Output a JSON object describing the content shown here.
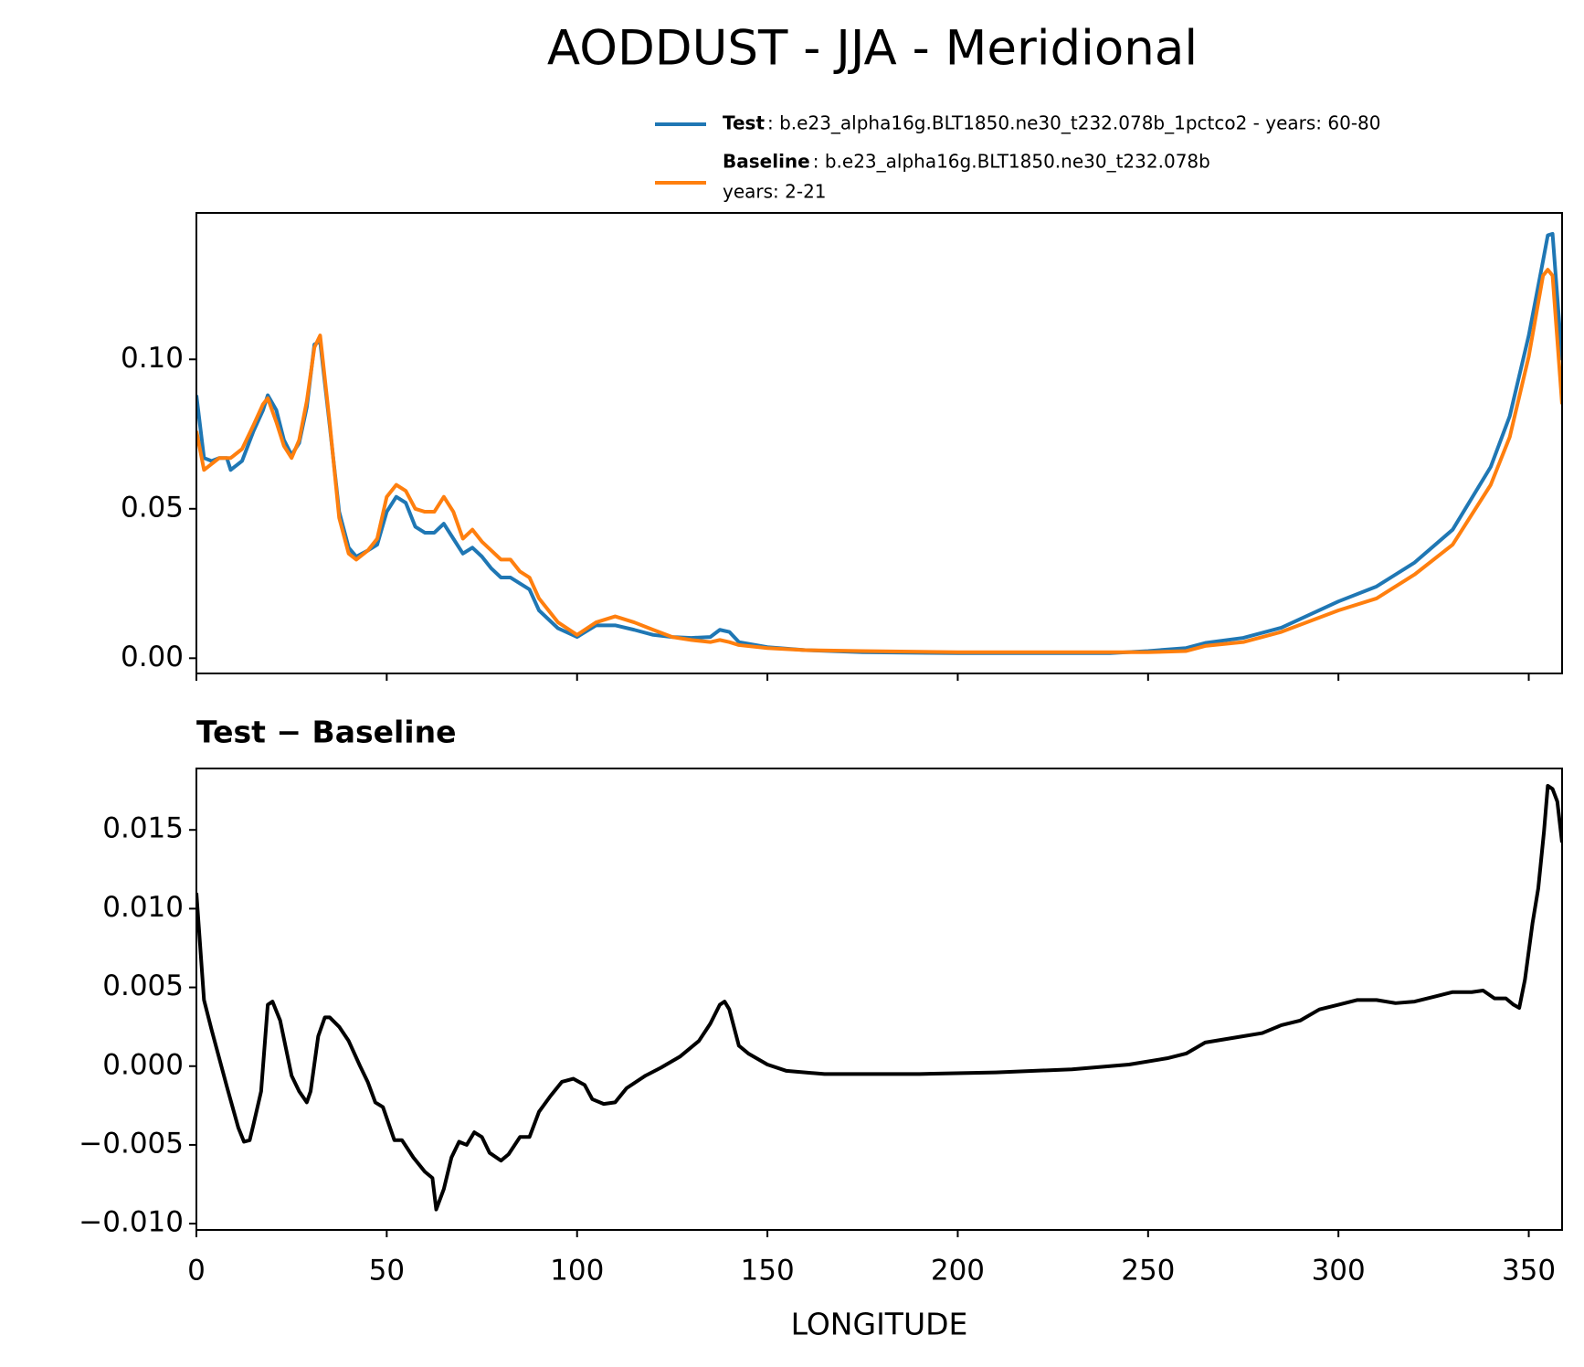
{
  "chart_data": [
    {
      "type": "line",
      "title": "AODDUST - JJA - Meridional",
      "x": [
        0,
        2,
        4,
        6,
        8,
        9,
        12,
        15,
        17.5,
        18.75,
        21,
        23,
        25,
        27,
        29,
        31,
        32.5,
        35,
        37.5,
        40,
        42,
        45,
        47.5,
        50,
        52.5,
        55,
        57.5,
        60,
        62.5,
        65,
        67.5,
        70,
        72.5,
        75,
        77.5,
        80,
        82.5,
        85,
        87.5,
        90,
        95,
        100,
        105,
        110,
        115,
        120,
        125,
        130,
        135,
        137.5,
        140,
        142.5,
        150,
        160,
        175,
        200,
        240,
        250,
        260,
        265,
        275,
        285,
        300,
        310,
        320,
        330,
        340,
        345,
        350,
        353.75,
        355,
        356.25,
        358.75
      ],
      "series": [
        {
          "name": "Test",
          "label_lines": [
            ": b.e23_alpha16g.BLT1850.ne30_t232.078b_1pctco2 - years: 60-80"
          ],
          "color": "#1f77b4",
          "values": [
            0.088,
            0.067,
            0.066,
            0.067,
            0.067,
            0.063,
            0.066,
            0.076,
            0.083,
            0.088,
            0.083,
            0.073,
            0.068,
            0.072,
            0.084,
            0.105,
            0.106,
            0.078,
            0.049,
            0.037,
            0.034,
            0.036,
            0.038,
            0.049,
            0.054,
            0.052,
            0.044,
            0.042,
            0.042,
            0.045,
            0.04,
            0.035,
            0.037,
            0.034,
            0.03,
            0.027,
            0.027,
            0.025,
            0.023,
            0.016,
            0.01,
            0.0071,
            0.011,
            0.011,
            0.0095,
            0.0078,
            0.0071,
            0.0068,
            0.0071,
            0.0095,
            0.0088,
            0.0054,
            0.0037,
            0.0027,
            0.002,
            0.0017,
            0.0017,
            0.0024,
            0.0034,
            0.0051,
            0.0068,
            0.0102,
            0.019,
            0.024,
            0.032,
            0.043,
            0.064,
            0.081,
            0.108,
            0.133,
            0.1415,
            0.142,
            0.0997
          ]
        },
        {
          "name": "Baseline",
          "label_lines": [
            ": b.e23_alpha16g.BLT1850.ne30_t232.078b",
            "years: 2-21"
          ],
          "color": "#ff7f0e",
          "values": [
            0.076,
            0.063,
            0.065,
            0.067,
            0.067,
            0.067,
            0.07,
            0.078,
            0.085,
            0.087,
            0.079,
            0.071,
            0.067,
            0.073,
            0.086,
            0.104,
            0.108,
            0.079,
            0.047,
            0.035,
            0.033,
            0.036,
            0.04,
            0.054,
            0.058,
            0.056,
            0.05,
            0.049,
            0.049,
            0.054,
            0.049,
            0.04,
            0.043,
            0.039,
            0.036,
            0.033,
            0.033,
            0.029,
            0.027,
            0.02,
            0.012,
            0.0078,
            0.012,
            0.014,
            0.012,
            0.0095,
            0.0071,
            0.0061,
            0.0054,
            0.0061,
            0.0054,
            0.0044,
            0.0034,
            0.0027,
            0.0024,
            0.002,
            0.002,
            0.002,
            0.0024,
            0.0041,
            0.0054,
            0.0088,
            0.016,
            0.02,
            0.028,
            0.038,
            0.058,
            0.074,
            0.101,
            0.128,
            0.13,
            0.128,
            0.085
          ]
        }
      ],
      "xlim": [
        0,
        358.75
      ],
      "xticks": [
        0,
        50,
        100,
        150,
        200,
        250,
        300,
        350
      ],
      "ylim": [
        -0.0051,
        0.149
      ],
      "yticks": [
        {
          "value": 0,
          "label": "0.00"
        },
        {
          "value": 0.05,
          "label": "0.05"
        },
        {
          "value": 0.1,
          "label": "0.10"
        }
      ]
    },
    {
      "type": "line",
      "title": "Test − Baseline",
      "xlabel": "LONGITUDE",
      "x": [
        0,
        2,
        4,
        8,
        11,
        12.5,
        14,
        15,
        17,
        18.75,
        20,
        22,
        25,
        27,
        29,
        30,
        32,
        33.75,
        35,
        37.5,
        40,
        43,
        45,
        47,
        49,
        52,
        54,
        57,
        60,
        62,
        63,
        65,
        67,
        69,
        71,
        73,
        75,
        77,
        80,
        82,
        85,
        87.5,
        90,
        93,
        96,
        99,
        102,
        104,
        107,
        110,
        113,
        118,
        122,
        127,
        132,
        135,
        137.5,
        138.75,
        140,
        142.5,
        145,
        150,
        155,
        165,
        175,
        190,
        210,
        230,
        245,
        255,
        260,
        265,
        275,
        280,
        285,
        290,
        295,
        300,
        305,
        310,
        315,
        320,
        325,
        330,
        335,
        338,
        341,
        344,
        346,
        347.5,
        349,
        351,
        352.5,
        354,
        355,
        356.25,
        357.5,
        358.75
      ],
      "series": [
        {
          "name": "Test − Baseline",
          "color": "#000000",
          "values": [
            0.011,
            0.0042,
            0.0023,
            -0.0013,
            -0.0039,
            -0.0048,
            -0.0047,
            -0.0037,
            -0.0016,
            0.0039,
            0.0041,
            0.0029,
            -0.0006,
            -0.0016,
            -0.0023,
            -0.0016,
            0.0019,
            0.0031,
            0.0031,
            0.0025,
            0.0016,
            0.0,
            -0.001,
            -0.0023,
            -0.0026,
            -0.0047,
            -0.0047,
            -0.0058,
            -0.0067,
            -0.0071,
            -0.0091,
            -0.0078,
            -0.0058,
            -0.0048,
            -0.005,
            -0.0042,
            -0.0045,
            -0.0055,
            -0.006,
            -0.0056,
            -0.0045,
            -0.0045,
            -0.0029,
            -0.0019,
            -0.001,
            -0.0008,
            -0.0012,
            -0.0021,
            -0.0024,
            -0.0023,
            -0.0014,
            -0.0006,
            -0.0001,
            0.0006,
            0.0016,
            0.0027,
            0.0039,
            0.0041,
            0.0036,
            0.0013,
            0.0008,
            0.0001,
            -0.0003,
            -0.0005,
            -0.0005,
            -0.0005,
            -0.0004,
            -0.0002,
            0.0001,
            0.0005,
            0.0008,
            0.0015,
            0.0019,
            0.0021,
            0.0026,
            0.0029,
            0.0036,
            0.0039,
            0.0042,
            0.0042,
            0.004,
            0.0041,
            0.0044,
            0.0047,
            0.0047,
            0.0048,
            0.0043,
            0.0043,
            0.0039,
            0.0037,
            0.0055,
            0.0091,
            0.0113,
            0.0149,
            0.0178,
            0.0176,
            0.0168,
            0.0142
          ]
        }
      ],
      "xlim": [
        0,
        358.75
      ],
      "xticks": [
        0,
        50,
        100,
        150,
        200,
        250,
        300,
        350
      ],
      "ylim": [
        -0.0104,
        0.0189
      ],
      "yticks": [
        {
          "value": -0.01,
          "label": "−0.010"
        },
        {
          "value": -0.005,
          "label": "−0.005"
        },
        {
          "value": 0,
          "label": "0.000"
        },
        {
          "value": 0.005,
          "label": "0.005"
        },
        {
          "value": 0.01,
          "label": "0.010"
        },
        {
          "value": 0.015,
          "label": "0.015"
        }
      ]
    }
  ]
}
